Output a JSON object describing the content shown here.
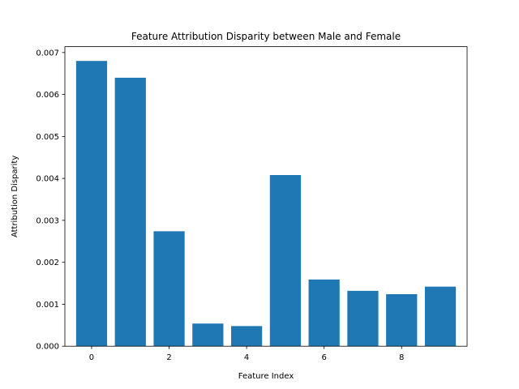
{
  "chart_data": {
    "type": "bar",
    "title": "Feature Attribution Disparity between Male and Female",
    "xlabel": "Feature Index",
    "ylabel": "Attribution Disparity",
    "categories": [
      0,
      1,
      2,
      3,
      4,
      5,
      6,
      7,
      8,
      9
    ],
    "values": [
      0.0068,
      0.0064,
      0.00274,
      0.00054,
      0.00048,
      0.00408,
      0.00159,
      0.00132,
      0.00124,
      0.00142
    ],
    "xlim": [
      -0.69,
      9.69
    ],
    "ylim": [
      0,
      0.00714
    ],
    "xticks": [
      0,
      2,
      4,
      6,
      8
    ],
    "xtick_labels": [
      "0",
      "2",
      "4",
      "6",
      "8"
    ],
    "yticks": [
      0,
      0.001,
      0.002,
      0.003,
      0.004,
      0.005,
      0.006,
      0.007
    ],
    "ytick_labels": [
      "0.000",
      "0.001",
      "0.002",
      "0.003",
      "0.004",
      "0.005",
      "0.006",
      "0.007"
    ],
    "bar_color": "#1f77b4",
    "grid": false,
    "legend": "none"
  }
}
